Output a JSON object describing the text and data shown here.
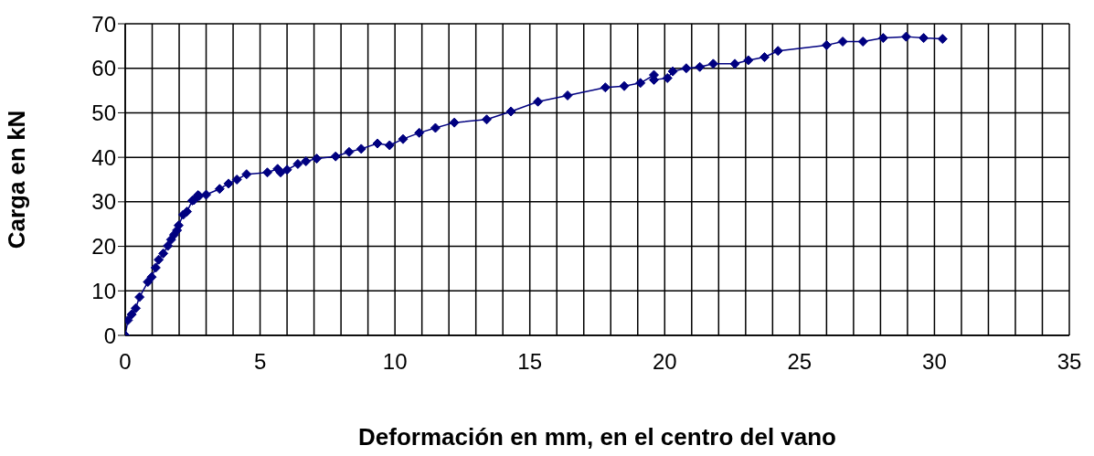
{
  "chart_data": {
    "type": "line",
    "xlabel": "Deformación en mm, en el centro del vano",
    "ylabel": "Carga en kN",
    "x": [
      0,
      0.1,
      0.24,
      0.39,
      0.53,
      0.84,
      0.98,
      1.13,
      1.24,
      1.41,
      1.58,
      1.7,
      1.81,
      1.92,
      1.98,
      2.15,
      2.29,
      2.49,
      2.55,
      2.7,
      2.74,
      3.0,
      3.5,
      3.83,
      4.14,
      4.5,
      5.27,
      5.65,
      5.76,
      6.0,
      6.4,
      6.7,
      7.1,
      7.8,
      8.3,
      8.75,
      9.35,
      9.8,
      10.3,
      10.9,
      11.5,
      12.2,
      13.4,
      14.3,
      15.3,
      16.4,
      17.8,
      18.5,
      19.1,
      19.6,
      19.6,
      20.1,
      20.3,
      20.8,
      21.3,
      21.8,
      22.6,
      23.1,
      23.7,
      24.2,
      26.0,
      26.6,
      27.35,
      28.1,
      28.95,
      29.6,
      30.3
    ],
    "series": [
      {
        "color": "#000080",
        "values": [
          0,
          3.4,
          4.7,
          6.1,
          8.6,
          12.0,
          13.1,
          15.2,
          17.0,
          18.4,
          20.1,
          21.5,
          22.6,
          23.6,
          24.7,
          27.1,
          27.8,
          30.3,
          30.4,
          31.5,
          31.3,
          31.6,
          32.9,
          34.1,
          35.0,
          36.2,
          36.6,
          37.4,
          36.6,
          37.2,
          38.5,
          39.1,
          39.7,
          40.2,
          41.2,
          41.9,
          43.1,
          42.7,
          44.1,
          45.5,
          46.6,
          47.8,
          48.5,
          50.3,
          52.5,
          53.9,
          55.7,
          56.0,
          56.7,
          58.5,
          57.4,
          57.8,
          59.3,
          60.0,
          60.3,
          61.0,
          61.0,
          61.8,
          62.5,
          63.9,
          65.2,
          66.0,
          66.0,
          66.8,
          67.1,
          66.8,
          66.6
        ]
      }
    ],
    "xlim": [
      0,
      35
    ],
    "xticks": [
      0,
      {
        "value": 1,
        "label": null
      },
      {
        "value": 2,
        "label": null
      },
      {
        "value": 3,
        "label": null
      },
      {
        "value": 4,
        "label": null
      },
      5,
      {
        "value": 6,
        "label": null
      },
      {
        "value": 7,
        "label": null
      },
      {
        "value": 8,
        "label": null
      },
      {
        "value": 9,
        "label": null
      },
      10,
      {
        "value": 11,
        "label": null
      },
      {
        "value": 12,
        "label": null
      },
      {
        "value": 13,
        "label": null
      },
      {
        "value": 14,
        "label": null
      },
      15,
      {
        "value": 16,
        "label": null
      },
      {
        "value": 17,
        "label": null
      },
      {
        "value": 18,
        "label": null
      },
      {
        "value": 19,
        "label": null
      },
      20,
      {
        "value": 21,
        "label": null
      },
      {
        "value": 22,
        "label": null
      },
      {
        "value": 23,
        "label": null
      },
      {
        "value": 24,
        "label": null
      },
      25,
      {
        "value": 26,
        "label": null
      },
      {
        "value": 27,
        "label": null
      },
      {
        "value": 28,
        "label": null
      },
      {
        "value": 29,
        "label": null
      },
      30,
      {
        "value": 31,
        "label": null
      },
      {
        "value": 32,
        "label": null
      },
      {
        "value": 33,
        "label": null
      },
      {
        "value": 34,
        "label": null
      },
      35
    ],
    "ylim": [
      0,
      70
    ],
    "yticks": [
      0,
      10,
      20,
      30,
      40,
      50,
      60,
      70
    ],
    "grid": true,
    "marker": "diamond",
    "line_style": "solid"
  }
}
